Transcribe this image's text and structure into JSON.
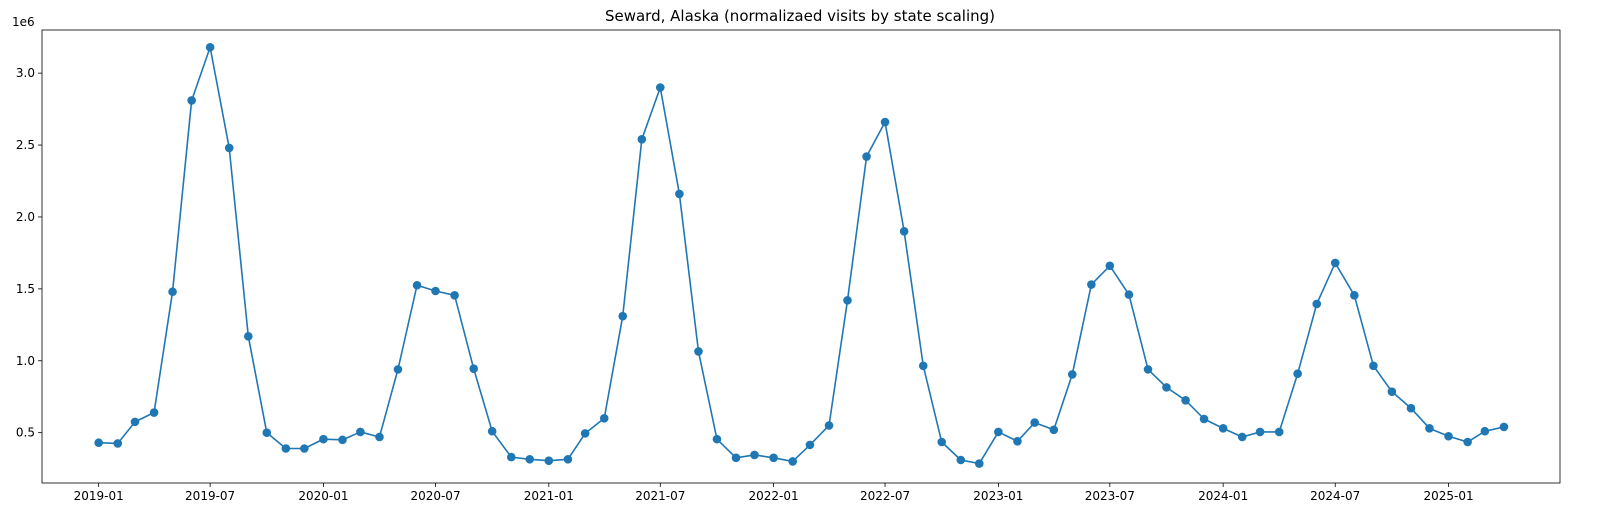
{
  "chart_data": {
    "type": "line",
    "title": "Seward, Alaska (normalizaed visits by state scaling)",
    "xlabel": "",
    "ylabel": "",
    "y_multiplier_label": "1e6",
    "y_multiplier": 1000000,
    "xlim": [
      "2018-10-01",
      "2025-07-01"
    ],
    "ylim": [
      150000,
      3300000
    ],
    "x_tick_labels": [
      "2019-01",
      "2019-07",
      "2020-01",
      "2020-07",
      "2021-01",
      "2021-07",
      "2022-01",
      "2022-07",
      "2023-01",
      "2023-07",
      "2024-01",
      "2024-07",
      "2025-01"
    ],
    "y_tick_labels": [
      "0.5",
      "1.0",
      "1.5",
      "2.0",
      "2.5",
      "3.0"
    ],
    "y_tick_values": [
      500000,
      1000000,
      1500000,
      2000000,
      2500000,
      3000000
    ],
    "grid": false,
    "marker": "circle",
    "colors": {
      "series": "#1f77b4"
    },
    "series": [
      {
        "x": [
          "2019-01",
          "2019-02",
          "2019-03",
          "2019-04",
          "2019-05",
          "2019-06",
          "2019-07",
          "2019-08",
          "2019-09",
          "2019-10",
          "2019-11",
          "2019-12",
          "2020-01",
          "2020-02",
          "2020-03",
          "2020-04",
          "2020-05",
          "2020-06",
          "2020-07",
          "2020-08",
          "2020-09",
          "2020-10",
          "2020-11",
          "2020-12",
          "2021-01",
          "2021-02",
          "2021-03",
          "2021-04",
          "2021-05",
          "2021-06",
          "2021-07",
          "2021-08",
          "2021-09",
          "2021-10",
          "2021-11",
          "2021-12",
          "2022-01",
          "2022-02",
          "2022-03",
          "2022-04",
          "2022-05",
          "2022-06",
          "2022-07",
          "2022-08",
          "2022-09",
          "2022-10",
          "2022-11",
          "2022-12",
          "2023-01",
          "2023-02",
          "2023-03",
          "2023-04",
          "2023-05",
          "2023-06",
          "2023-07",
          "2023-08",
          "2023-09",
          "2023-10",
          "2023-11",
          "2023-12",
          "2024-01",
          "2024-02",
          "2024-03",
          "2024-04",
          "2024-05",
          "2024-06",
          "2024-07",
          "2024-08",
          "2024-09",
          "2024-10",
          "2024-11",
          "2024-12",
          "2025-01",
          "2025-02",
          "2025-03",
          "2025-04"
        ],
        "values": [
          430000,
          425000,
          575000,
          640000,
          1480000,
          2810000,
          3180000,
          2480000,
          1170000,
          500000,
          390000,
          390000,
          455000,
          450000,
          505000,
          470000,
          940000,
          1525000,
          1485000,
          1455000,
          945000,
          510000,
          330000,
          315000,
          305000,
          315000,
          495000,
          600000,
          1310000,
          2540000,
          2900000,
          2160000,
          1065000,
          455000,
          325000,
          345000,
          325000,
          300000,
          415000,
          550000,
          1420000,
          2420000,
          2660000,
          1900000,
          965000,
          435000,
          310000,
          285000,
          505000,
          440000,
          570000,
          520000,
          905000,
          1530000,
          1660000,
          1460000,
          940000,
          815000,
          725000,
          595000,
          530000,
          470000,
          505000,
          505000,
          910000,
          1395000,
          1680000,
          1455000,
          965000,
          785000,
          670000,
          530000,
          475000,
          435000,
          510000,
          540000
        ]
      }
    ]
  }
}
